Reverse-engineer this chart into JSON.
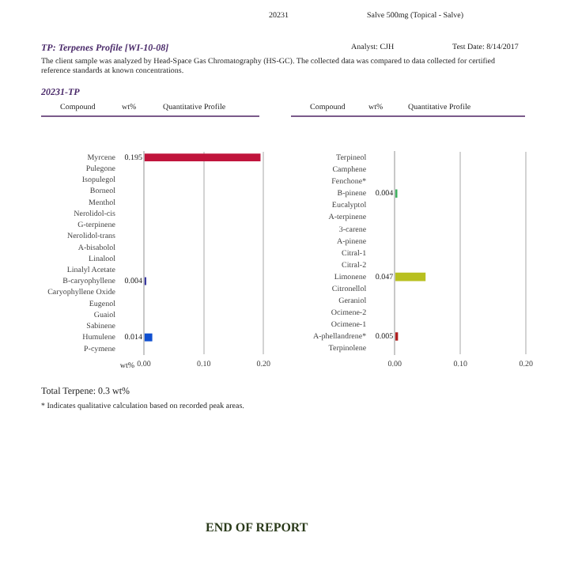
{
  "chart_data": [
    {
      "type": "bar",
      "orientation": "horizontal",
      "title": "TP: Terpenes Profile [WI-10-08]",
      "xlabel": "wt%",
      "categories": [
        "Myrcene",
        "Pulegone",
        "Isopulegol",
        "Borneol",
        "Menthol",
        "Nerolidol-cis",
        "G-terpinene",
        "Nerolidol-trans",
        "A-bisabolol",
        "Linalool",
        "Linalyl Acetate",
        "B-caryophyllene",
        "Caryophyllene Oxide",
        "Eugenol",
        "Guaiol",
        "Sabinene",
        "Humulene",
        "P-cymene"
      ],
      "values": [
        0.195,
        null,
        null,
        null,
        null,
        null,
        null,
        null,
        null,
        null,
        null,
        0.004,
        null,
        null,
        null,
        null,
        0.014,
        null
      ],
      "value_labels": [
        "0.195",
        null,
        null,
        null,
        null,
        null,
        null,
        null,
        null,
        null,
        null,
        "0.004",
        null,
        null,
        null,
        null,
        "0.014",
        null
      ],
      "colors": [
        "#c0143c",
        "#c0143c",
        "#c0143c",
        "#c0143c",
        "#c0143c",
        "#c0143c",
        "#c0143c",
        "#c0143c",
        "#c0143c",
        "#c0143c",
        "#c0143c",
        "#3a3aa0",
        "#c0143c",
        "#c0143c",
        "#c0143c",
        "#c0143c",
        "#1050d0",
        "#c0143c"
      ],
      "xlim": [
        0,
        0.2
      ],
      "xticks": [
        {
          "value": 0,
          "label": "0.00"
        },
        {
          "value": 0.1,
          "label": "0.10"
        },
        {
          "value": 0.2,
          "label": "0.20"
        }
      ],
      "grid": "x",
      "annotations": [
        "20231",
        "Salve 500mg (Topical - Salve)",
        "Analyst: CJH",
        "Test Date: 8/14/2017",
        "The client sample was analyzed by Head-Space Gas Chromatography (HS-GC).  The collected data was compared to data collected for certified reference standards at known concentrations.",
        "20231-TP",
        "Compound",
        "wt%",
        "Quantitative Profile",
        "Total Terpene: 0.3 wt%",
        "* Indicates qualitative calculation based on recorded peak areas.",
        "END OF REPORT"
      ]
    },
    {
      "type": "bar",
      "orientation": "horizontal",
      "categories": [
        "Terpineol",
        "Camphene",
        "Fenchone*",
        "B-pinene",
        "Eucalyptol",
        "A-terpinene",
        "3-carene",
        "A-pinene",
        "Citral-1",
        "Citral-2",
        "Limonene",
        "Citronellol",
        "Geraniol",
        "Ocimene-2",
        "Ocimene-1",
        "A-phellandrene*",
        "Terpinolene"
      ],
      "values": [
        null,
        null,
        null,
        0.004,
        null,
        null,
        null,
        null,
        null,
        null,
        0.047,
        null,
        null,
        null,
        null,
        0.005,
        null
      ],
      "value_labels": [
        null,
        null,
        null,
        "0.004",
        null,
        null,
        null,
        null,
        null,
        null,
        "0.047",
        null,
        null,
        null,
        null,
        "0.005",
        null
      ],
      "colors": [
        "#40b060",
        "#40b060",
        "#40b060",
        "#40b060",
        "#40b060",
        "#40b060",
        "#40b060",
        "#40b060",
        "#40b060",
        "#40b060",
        "#b8c020",
        "#40b060",
        "#40b060",
        "#40b060",
        "#40b060",
        "#b02020",
        "#40b060"
      ],
      "xlim": [
        0,
        0.2
      ],
      "xticks": [
        {
          "value": 0,
          "label": "0.00"
        },
        {
          "value": 0.1,
          "label": "0.10"
        },
        {
          "value": 0.2,
          "label": "0.20"
        }
      ],
      "grid": "x",
      "annotations": [
        "Compound",
        "wt%",
        "Quantitative Profile"
      ]
    }
  ]
}
